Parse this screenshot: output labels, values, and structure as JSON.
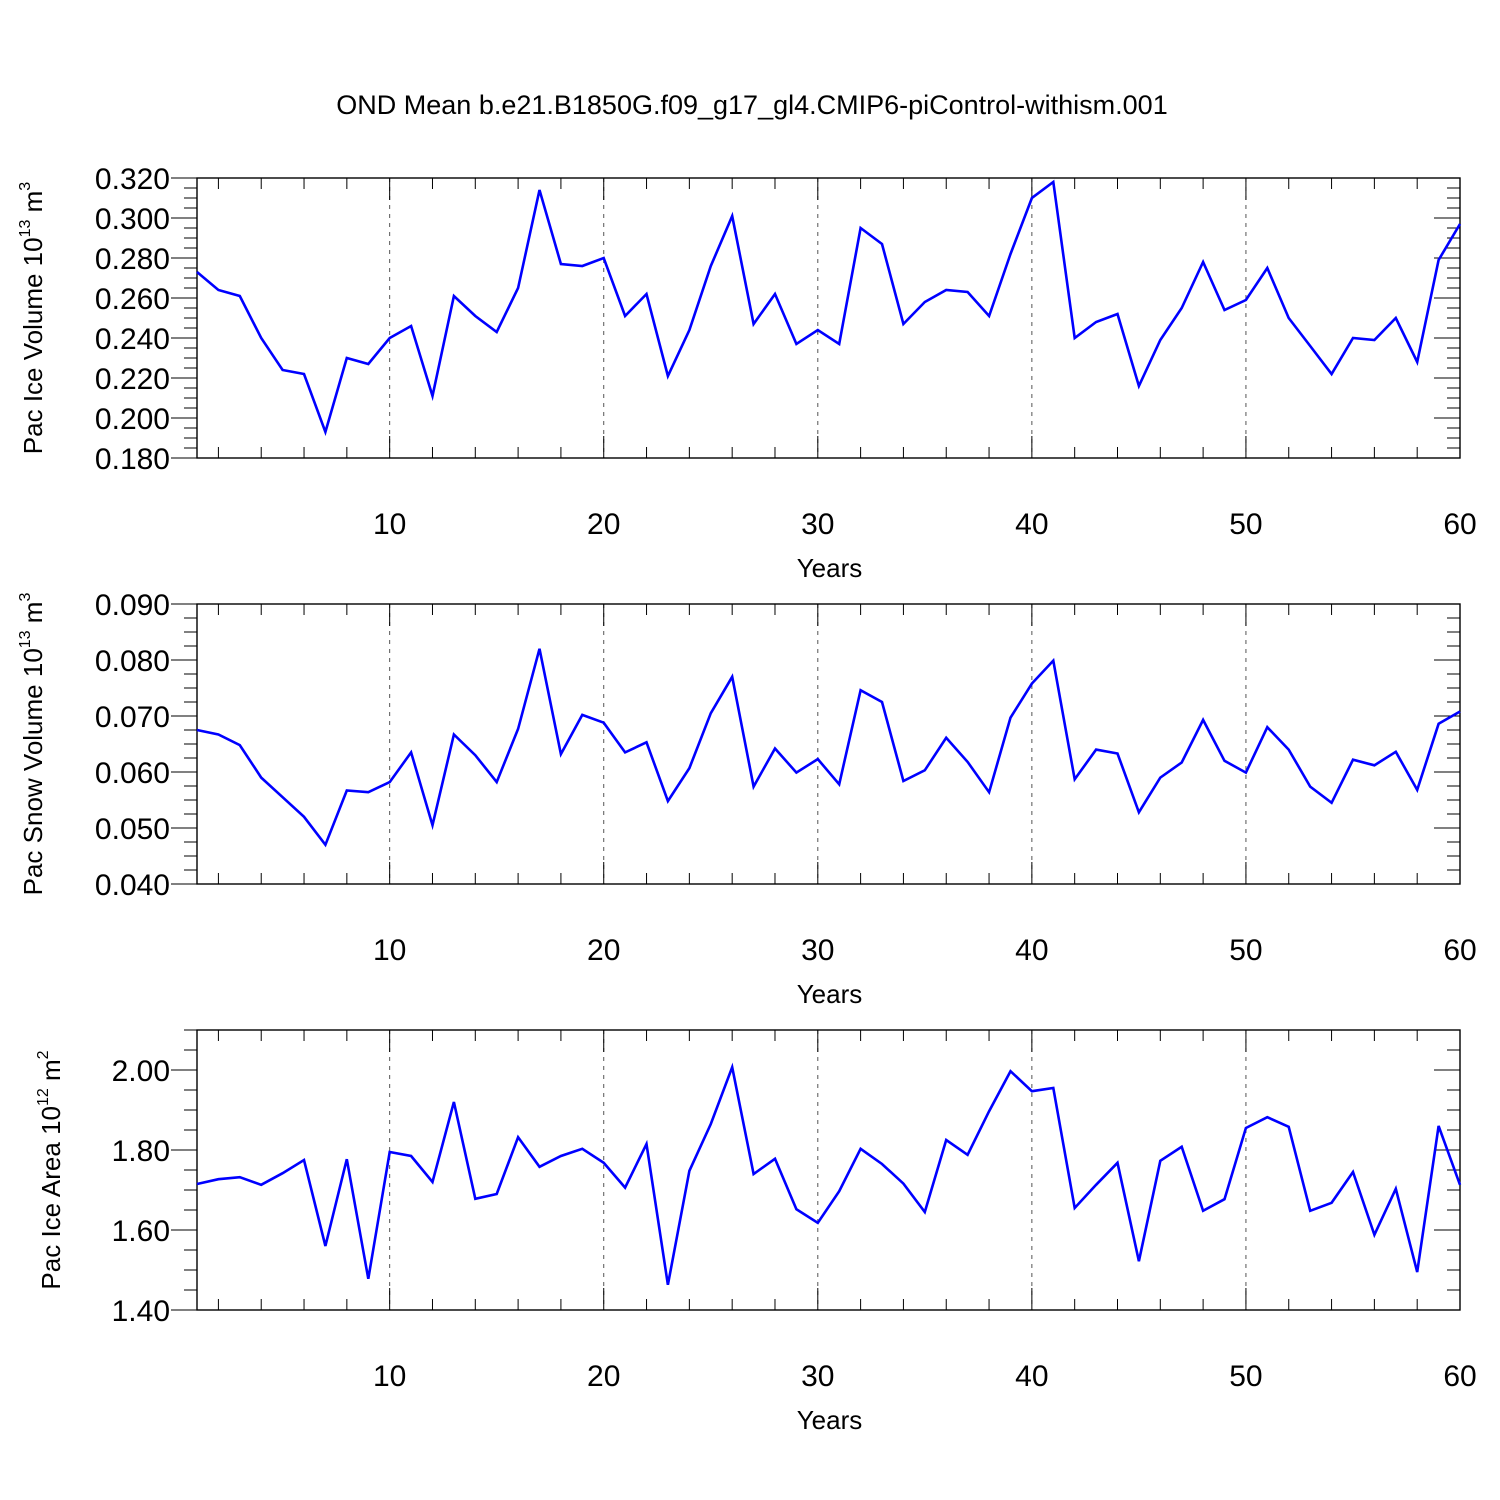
{
  "title": "OND Mean b.e21.B1850G.f09_g17_gl4.CMIP6-piControl-withism.001",
  "chart_data": [
    {
      "type": "line",
      "ylabel_parts": [
        "Pac Ice Volume 10",
        "13",
        " m",
        "3"
      ],
      "xlabel": "Years",
      "xlim": [
        1,
        60
      ],
      "ylim": [
        0.18,
        0.32
      ],
      "x_ticks": [
        10,
        20,
        30,
        40,
        50,
        60
      ],
      "y_ticks": [
        "0.180",
        "0.200",
        "0.220",
        "0.240",
        "0.260",
        "0.280",
        "0.300",
        "0.320"
      ],
      "grid": "dashed vertical lines at major x ticks",
      "line_color": "#0000ff",
      "x": [
        1,
        2,
        3,
        4,
        5,
        6,
        7,
        8,
        9,
        10,
        11,
        12,
        13,
        14,
        15,
        16,
        17,
        18,
        19,
        20,
        21,
        22,
        23,
        24,
        25,
        26,
        27,
        28,
        29,
        30,
        31,
        32,
        33,
        34,
        35,
        36,
        37,
        38,
        39,
        40,
        41,
        42,
        43,
        44,
        45,
        46,
        47,
        48,
        49,
        50,
        51,
        52,
        53,
        54,
        55,
        56,
        57,
        58,
        59,
        60
      ],
      "values": [
        0.273,
        0.264,
        0.261,
        0.24,
        0.224,
        0.222,
        0.193,
        0.23,
        0.227,
        0.24,
        0.246,
        0.211,
        0.261,
        0.251,
        0.243,
        0.265,
        0.314,
        0.277,
        0.276,
        0.28,
        0.251,
        0.262,
        0.221,
        0.244,
        0.276,
        0.301,
        0.247,
        0.262,
        0.237,
        0.244,
        0.237,
        0.295,
        0.287,
        0.247,
        0.258,
        0.264,
        0.263,
        0.251,
        0.282,
        0.31,
        0.318,
        0.24,
        0.248,
        0.252,
        0.216,
        0.239,
        0.255,
        0.278,
        0.254,
        0.259,
        0.275,
        0.25,
        0.236,
        0.222,
        0.24,
        0.239,
        0.25,
        0.228,
        0.279,
        0.297
      ]
    },
    {
      "type": "line",
      "ylabel_parts": [
        "Pac Snow Volume 10",
        "13",
        " m",
        "3"
      ],
      "xlabel": "Years",
      "xlim": [
        1,
        60
      ],
      "ylim": [
        0.04,
        0.09
      ],
      "x_ticks": [
        10,
        20,
        30,
        40,
        50,
        60
      ],
      "y_ticks": [
        "0.040",
        "0.050",
        "0.060",
        "0.070",
        "0.080",
        "0.090"
      ],
      "grid": "dashed vertical lines at major x ticks",
      "line_color": "#0000ff",
      "x": [
        1,
        2,
        3,
        4,
        5,
        6,
        7,
        8,
        9,
        10,
        11,
        12,
        13,
        14,
        15,
        16,
        17,
        18,
        19,
        20,
        21,
        22,
        23,
        24,
        25,
        26,
        27,
        28,
        29,
        30,
        31,
        32,
        33,
        34,
        35,
        36,
        37,
        38,
        39,
        40,
        41,
        42,
        43,
        44,
        45,
        46,
        47,
        48,
        49,
        50,
        51,
        52,
        53,
        54,
        55,
        56,
        57,
        58,
        59,
        60
      ],
      "values": [
        0.0675,
        0.0667,
        0.0648,
        0.059,
        0.0555,
        0.052,
        0.047,
        0.0567,
        0.0564,
        0.0582,
        0.0635,
        0.0505,
        0.0667,
        0.063,
        0.0582,
        0.0677,
        0.082,
        0.0632,
        0.0702,
        0.0688,
        0.0635,
        0.0653,
        0.0548,
        0.0607,
        0.0705,
        0.077,
        0.0574,
        0.0642,
        0.0599,
        0.0623,
        0.0578,
        0.0746,
        0.0725,
        0.0584,
        0.0603,
        0.0661,
        0.0618,
        0.0564,
        0.0697,
        0.0758,
        0.0799,
        0.0587,
        0.064,
        0.0633,
        0.0528,
        0.059,
        0.0617,
        0.0693,
        0.062,
        0.0599,
        0.068,
        0.064,
        0.0574,
        0.0545,
        0.0622,
        0.0612,
        0.0636,
        0.0568,
        0.0686,
        0.0708
      ]
    },
    {
      "type": "line",
      "ylabel_parts": [
        "Pac Ice Area 10",
        "12",
        " m",
        "2"
      ],
      "xlabel": "Years",
      "xlim": [
        1,
        60
      ],
      "ylim": [
        1.4,
        2.1
      ],
      "x_ticks": [
        10,
        20,
        30,
        40,
        50,
        60
      ],
      "y_ticks": [
        "1.40",
        "1.60",
        "1.80",
        "2.00"
      ],
      "grid": "dashed vertical lines at major x ticks",
      "line_color": "#0000ff",
      "x": [
        1,
        2,
        3,
        4,
        5,
        6,
        7,
        8,
        9,
        10,
        11,
        12,
        13,
        14,
        15,
        16,
        17,
        18,
        19,
        20,
        21,
        22,
        23,
        24,
        25,
        26,
        27,
        28,
        29,
        30,
        31,
        32,
        33,
        34,
        35,
        36,
        37,
        38,
        39,
        40,
        41,
        42,
        43,
        44,
        45,
        46,
        47,
        48,
        49,
        50,
        51,
        52,
        53,
        54,
        55,
        56,
        57,
        58,
        59,
        60
      ],
      "values": [
        1.715,
        1.727,
        1.732,
        1.713,
        1.742,
        1.775,
        1.56,
        1.777,
        1.478,
        1.795,
        1.785,
        1.72,
        1.92,
        1.678,
        1.69,
        1.832,
        1.758,
        1.785,
        1.803,
        1.768,
        1.706,
        1.815,
        1.463,
        1.748,
        1.865,
        2.007,
        1.74,
        1.778,
        1.652,
        1.618,
        1.697,
        1.803,
        1.765,
        1.716,
        1.645,
        1.825,
        1.788,
        1.897,
        1.997,
        1.947,
        1.955,
        1.655,
        1.713,
        1.768,
        1.522,
        1.773,
        1.808,
        1.648,
        1.677,
        1.855,
        1.882,
        1.858,
        1.648,
        1.668,
        1.745,
        1.588,
        1.703,
        1.495,
        1.86,
        1.713
      ]
    }
  ]
}
